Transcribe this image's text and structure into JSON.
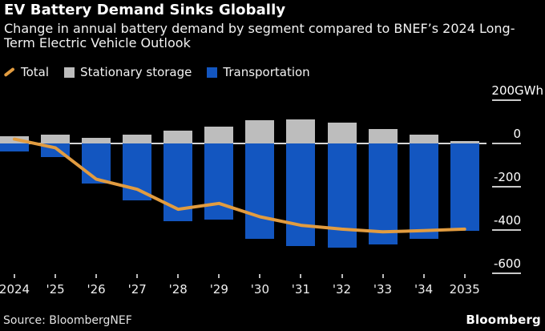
{
  "header": {
    "title": "EV Battery Demand Sinks Globally",
    "subtitle_lines": [
      "Change in annual battery demand by segment compared to BNEF’s 2024 Long-",
      "Term Electric Vehicle Outlook"
    ]
  },
  "legend": [
    {
      "label": "Total",
      "marker": "line-icon",
      "color": "#e29c40"
    },
    {
      "label": "Stationary storage",
      "marker": "square-icon",
      "color": "#bdbdbd"
    },
    {
      "label": "Transportation",
      "marker": "square-icon",
      "color": "#1356c0"
    }
  ],
  "chart_data": {
    "type": "bar",
    "subtype": "stacked bars with overlaid line",
    "unit": "GWh",
    "categories": [
      "2024",
      "'25",
      "'26",
      "'27",
      "'28",
      "'29",
      "'30",
      "'31",
      "'32",
      "'33",
      "'34",
      "2035"
    ],
    "series": [
      {
        "name": "Stationary storage",
        "type": "bar",
        "color": "#bdbdbd",
        "values": [
          35,
          40,
          25,
          40,
          59,
          77,
          107,
          110,
          97,
          67,
          41,
          13
        ]
      },
      {
        "name": "Transportation",
        "type": "bar",
        "color": "#1356c0",
        "values": [
          -35,
          -63,
          -186,
          -263,
          -359,
          -351,
          -441,
          -475,
          -480,
          -466,
          -441,
          -404
        ]
      },
      {
        "name": "Total",
        "type": "line",
        "color": "#e29c40",
        "values": [
          20,
          -20,
          -165,
          -212,
          -304,
          -277,
          -339,
          -378,
          -396,
          -408,
          -403,
          -396
        ]
      }
    ],
    "y_axis": {
      "ticks": [
        200,
        0,
        -200,
        -400,
        -600
      ],
      "tick_labels": [
        "200GWh",
        "0",
        "-200",
        "-400",
        "-600"
      ],
      "range": [
        -660,
        230
      ],
      "side": "right"
    },
    "x_axis": {
      "tick_labels": [
        "2024",
        "'25",
        "'26",
        "'27",
        "'28",
        "'29",
        "'30",
        "'31",
        "'32",
        "'33",
        "'34",
        "2035"
      ]
    },
    "grid": "zero line only",
    "legend_position": "top"
  },
  "footer": {
    "source": "Source: BloombergNEF",
    "logo": "Bloomberg"
  }
}
